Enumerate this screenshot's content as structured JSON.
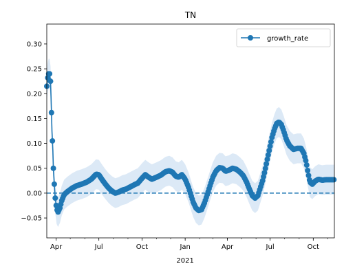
{
  "chart_data": {
    "type": "line",
    "title": "TN",
    "xlabel": "",
    "ylabel": "",
    "x_tick_labels": [
      "Apr",
      "Jul",
      "Oct",
      "Jan",
      "Apr",
      "Jul",
      "Oct"
    ],
    "x_tick_dates": [
      "2020-04-01",
      "2020-07-01",
      "2020-10-01",
      "2021-01-01",
      "2021-04-01",
      "2021-07-01",
      "2021-10-01"
    ],
    "x_year_label": "2021",
    "xlim": [
      "2020-03-12",
      "2021-11-15"
    ],
    "ylim": [
      -0.09,
      0.34
    ],
    "y_tick_labels": [
      "−0.05",
      "0.00",
      "0.05",
      "0.10",
      "0.15",
      "0.20",
      "0.25",
      "0.30"
    ],
    "y_ticks": [
      -0.05,
      0.0,
      0.05,
      0.1,
      0.15,
      0.2,
      0.25,
      0.3
    ],
    "reference_line": {
      "y": 0.0,
      "style": "dashed",
      "color": "#1f77b4"
    },
    "series": [
      {
        "name": "growth_rate",
        "color": "#1f77b4",
        "marker": "circle",
        "band_color": "#dce9f6",
        "band_halfwidth": 0.03,
        "points": [
          [
            "2020-03-12",
            0.215
          ],
          [
            "2020-03-14",
            0.232
          ],
          [
            "2020-03-16",
            0.24
          ],
          [
            "2020-03-18",
            0.24
          ],
          [
            "2020-03-20",
            0.225
          ],
          [
            "2020-03-21",
            0.195
          ],
          [
            "2020-03-22",
            0.162
          ],
          [
            "2020-03-23",
            0.125
          ],
          [
            "2020-03-25",
            0.085
          ],
          [
            "2020-03-26",
            0.05
          ],
          [
            "2020-03-28",
            0.018
          ],
          [
            "2020-03-30",
            -0.01
          ],
          [
            "2020-04-02",
            -0.032
          ],
          [
            "2020-04-05",
            -0.038
          ],
          [
            "2020-04-09",
            -0.03
          ],
          [
            "2020-04-13",
            -0.015
          ],
          [
            "2020-04-18",
            -0.003
          ],
          [
            "2020-04-25",
            0.003
          ],
          [
            "2020-05-05",
            0.01
          ],
          [
            "2020-05-15",
            0.015
          ],
          [
            "2020-05-25",
            0.018
          ],
          [
            "2020-06-05",
            0.022
          ],
          [
            "2020-06-15",
            0.028
          ],
          [
            "2020-06-25",
            0.038
          ],
          [
            "2020-07-01",
            0.037
          ],
          [
            "2020-07-08",
            0.027
          ],
          [
            "2020-07-15",
            0.018
          ],
          [
            "2020-07-22",
            0.01
          ],
          [
            "2020-07-29",
            0.004
          ],
          [
            "2020-08-05",
            0.0
          ],
          [
            "2020-08-12",
            0.002
          ],
          [
            "2020-08-20",
            0.006
          ],
          [
            "2020-08-28",
            0.008
          ],
          [
            "2020-09-05",
            0.012
          ],
          [
            "2020-09-15",
            0.017
          ],
          [
            "2020-09-22",
            0.02
          ],
          [
            "2020-10-01",
            0.03
          ],
          [
            "2020-10-08",
            0.037
          ],
          [
            "2020-10-15",
            0.032
          ],
          [
            "2020-10-22",
            0.028
          ],
          [
            "2020-11-01",
            0.032
          ],
          [
            "2020-11-10",
            0.036
          ],
          [
            "2020-11-20",
            0.043
          ],
          [
            "2020-11-28",
            0.045
          ],
          [
            "2020-12-05",
            0.042
          ],
          [
            "2020-12-12",
            0.034
          ],
          [
            "2020-12-18",
            0.032
          ],
          [
            "2020-12-25",
            0.037
          ],
          [
            "2021-01-01",
            0.028
          ],
          [
            "2021-01-08",
            0.012
          ],
          [
            "2021-01-13",
            -0.003
          ],
          [
            "2021-01-18",
            -0.018
          ],
          [
            "2021-01-24",
            -0.03
          ],
          [
            "2021-01-30",
            -0.035
          ],
          [
            "2021-02-05",
            -0.033
          ],
          [
            "2021-02-11",
            -0.02
          ],
          [
            "2021-02-17",
            -0.003
          ],
          [
            "2021-02-23",
            0.015
          ],
          [
            "2021-03-01",
            0.032
          ],
          [
            "2021-03-08",
            0.045
          ],
          [
            "2021-03-15",
            0.051
          ],
          [
            "2021-03-22",
            0.05
          ],
          [
            "2021-03-28",
            0.044
          ],
          [
            "2021-04-04",
            0.046
          ],
          [
            "2021-04-12",
            0.05
          ],
          [
            "2021-04-20",
            0.048
          ],
          [
            "2021-04-28",
            0.042
          ],
          [
            "2021-05-05",
            0.035
          ],
          [
            "2021-05-12",
            0.022
          ],
          [
            "2021-05-18",
            0.008
          ],
          [
            "2021-05-24",
            -0.005
          ],
          [
            "2021-05-30",
            -0.01
          ],
          [
            "2021-06-05",
            -0.005
          ],
          [
            "2021-06-10",
            0.01
          ],
          [
            "2021-06-15",
            0.025
          ],
          [
            "2021-06-20",
            0.045
          ],
          [
            "2021-06-25",
            0.068
          ],
          [
            "2021-06-30",
            0.09
          ],
          [
            "2021-07-05",
            0.112
          ],
          [
            "2021-07-10",
            0.128
          ],
          [
            "2021-07-15",
            0.14
          ],
          [
            "2021-07-20",
            0.143
          ],
          [
            "2021-07-25",
            0.138
          ],
          [
            "2021-07-30",
            0.125
          ],
          [
            "2021-08-05",
            0.107
          ],
          [
            "2021-08-12",
            0.095
          ],
          [
            "2021-08-20",
            0.088
          ],
          [
            "2021-08-28",
            0.09
          ],
          [
            "2021-09-05",
            0.09
          ],
          [
            "2021-09-11",
            0.08
          ],
          [
            "2021-09-16",
            0.062
          ],
          [
            "2021-09-20",
            0.04
          ],
          [
            "2021-09-24",
            0.022
          ],
          [
            "2021-09-29",
            0.018
          ],
          [
            "2021-10-05",
            0.024
          ],
          [
            "2021-10-12",
            0.028
          ],
          [
            "2021-10-20",
            0.026
          ],
          [
            "2021-10-28",
            0.027
          ],
          [
            "2021-11-05",
            0.027
          ],
          [
            "2021-11-15",
            0.027
          ]
        ]
      }
    ],
    "legend": {
      "position": "top-right",
      "entries": [
        "growth_rate"
      ]
    },
    "grid": false
  }
}
